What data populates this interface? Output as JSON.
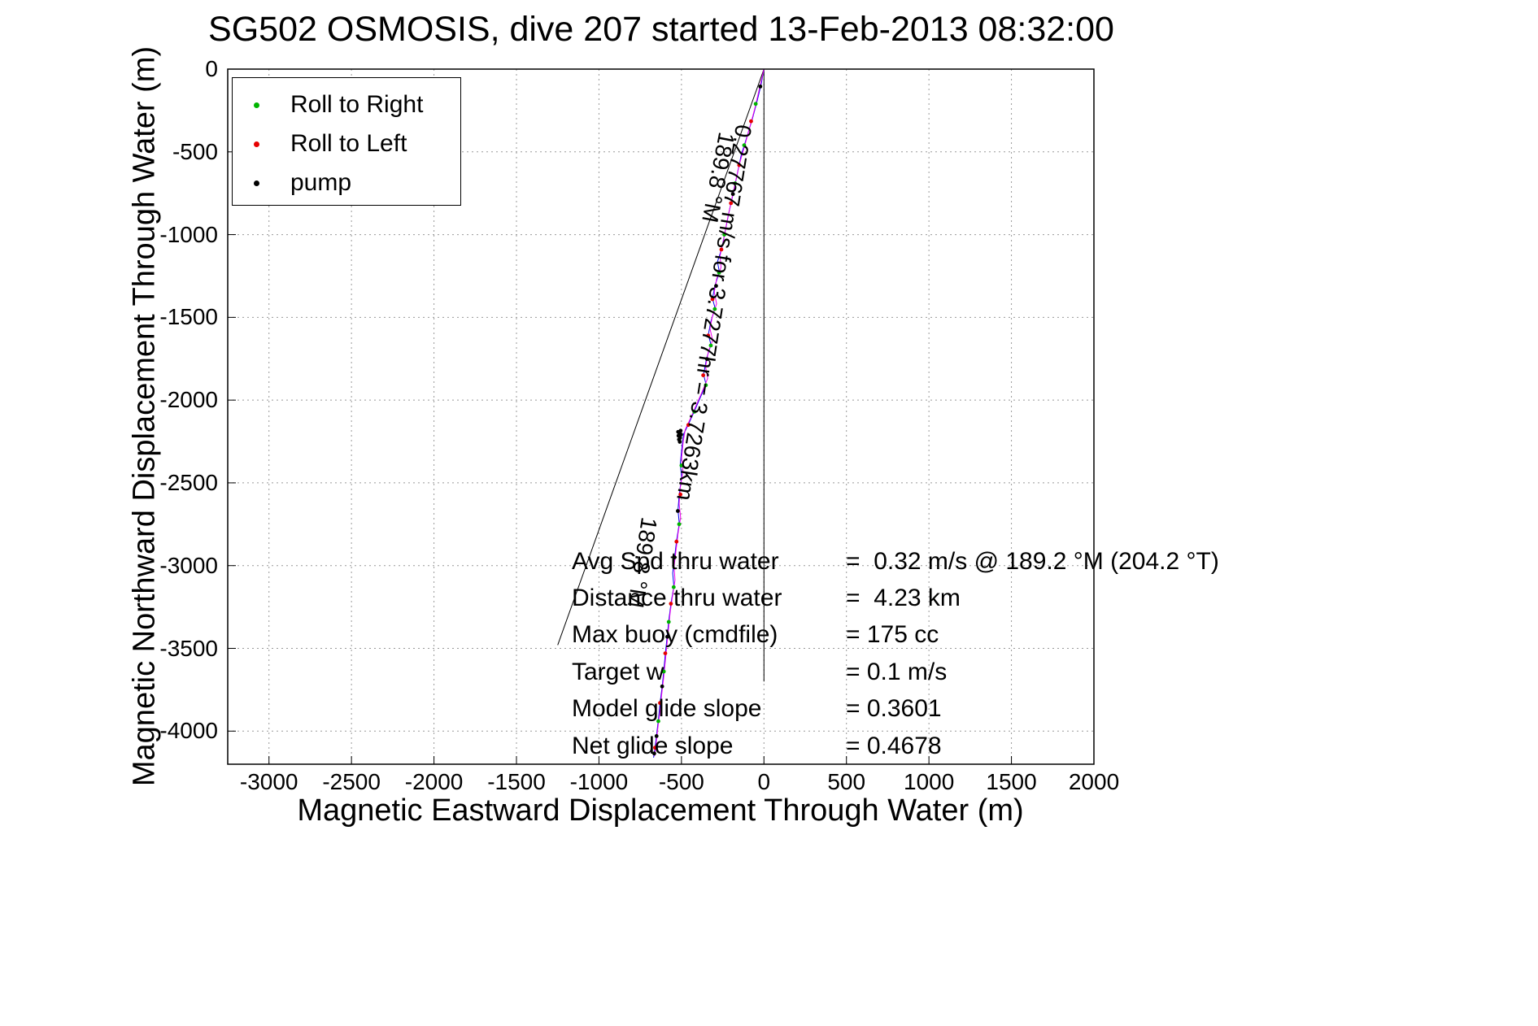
{
  "chart_data": {
    "type": "line",
    "title": "SG502 OSMOSIS, dive 207 started 13-Feb-2013 08:32:00",
    "xlabel": "Magnetic Eastward Displacement Through Water (m)",
    "ylabel": "Magnetic Northward Displacement Through Water (m)",
    "xlim": [
      -3250,
      2000
    ],
    "ylim": [
      -4200,
      0
    ],
    "xticks": [
      -3000,
      -2500,
      -2000,
      -1500,
      -1000,
      -500,
      0,
      500,
      1000,
      1500,
      2000
    ],
    "yticks": [
      0,
      -500,
      -1000,
      -1500,
      -2000,
      -2500,
      -3000,
      -3500,
      -4000
    ],
    "grid": true,
    "grid_color": "#999999",
    "legend": {
      "position": "top-left",
      "items": [
        {
          "id": "roll-to-right",
          "label": "Roll to Right",
          "color": "#00b400"
        },
        {
          "id": "roll-to-left",
          "label": "Roll to Left",
          "color": "#e60000"
        },
        {
          "id": "pump",
          "label": "pump",
          "color": "#000000"
        }
      ]
    },
    "reference_lines": [
      {
        "name": "magnetic-north-line",
        "from": [
          0,
          0
        ],
        "to": [
          0,
          -3700
        ],
        "color": "#000000"
      },
      {
        "name": "bearing-line",
        "from": [
          0,
          0
        ],
        "to": [
          -1250,
          -3480
        ],
        "color": "#000000"
      }
    ],
    "series": [
      {
        "name": "track-dive",
        "color": "#0000ee",
        "points": [
          [
            0,
            0
          ],
          [
            -18,
            -95
          ],
          [
            -42,
            -195
          ],
          [
            -70,
            -300
          ],
          [
            -105,
            -415
          ],
          [
            -138,
            -520
          ],
          [
            -160,
            -625
          ],
          [
            -185,
            -745
          ],
          [
            -212,
            -865
          ],
          [
            -236,
            -985
          ],
          [
            -256,
            -1085
          ],
          [
            -282,
            -1165
          ],
          [
            -270,
            -1225
          ],
          [
            -296,
            -1305
          ],
          [
            -312,
            -1385
          ],
          [
            -296,
            -1445
          ],
          [
            -322,
            -1525
          ],
          [
            -337,
            -1605
          ],
          [
            -321,
            -1665
          ],
          [
            -347,
            -1745
          ],
          [
            -366,
            -1845
          ],
          [
            -351,
            -1905
          ],
          [
            -386,
            -1985
          ],
          [
            -421,
            -2065
          ],
          [
            -457,
            -2145
          ],
          [
            -487,
            -2205
          ],
          [
            -497,
            -2285
          ],
          [
            -507,
            -2385
          ],
          [
            -499,
            -2465
          ],
          [
            -513,
            -2565
          ],
          [
            -521,
            -2665
          ],
          [
            -513,
            -2745
          ],
          [
            -529,
            -2845
          ],
          [
            -541,
            -2945
          ],
          [
            -553,
            -3045
          ],
          [
            -546,
            -3125
          ],
          [
            -563,
            -3225
          ],
          [
            -576,
            -3325
          ],
          [
            -586,
            -3425
          ],
          [
            -597,
            -3525
          ],
          [
            -606,
            -3625
          ],
          [
            -616,
            -3725
          ],
          [
            -629,
            -3825
          ],
          [
            -639,
            -3925
          ],
          [
            -651,
            -4025
          ],
          [
            -663,
            -4125
          ],
          [
            -669,
            -4160
          ]
        ]
      },
      {
        "name": "track-climb",
        "color": "#ee00ee",
        "points": [
          [
            0,
            0
          ],
          [
            -28,
            -120
          ],
          [
            -56,
            -240
          ],
          [
            -88,
            -360
          ],
          [
            -118,
            -468
          ],
          [
            -148,
            -572
          ],
          [
            -173,
            -682
          ],
          [
            -198,
            -800
          ],
          [
            -224,
            -920
          ],
          [
            -244,
            -1030
          ],
          [
            -266,
            -1128
          ],
          [
            -260,
            -1198
          ],
          [
            -287,
            -1268
          ],
          [
            -301,
            -1348
          ],
          [
            -287,
            -1418
          ],
          [
            -311,
            -1488
          ],
          [
            -327,
            -1568
          ],
          [
            -311,
            -1638
          ],
          [
            -337,
            -1708
          ],
          [
            -354,
            -1798
          ],
          [
            -341,
            -1868
          ],
          [
            -374,
            -1948
          ],
          [
            -409,
            -2028
          ],
          [
            -444,
            -2108
          ],
          [
            -477,
            -2178
          ],
          [
            -489,
            -2248
          ],
          [
            -499,
            -2348
          ],
          [
            -491,
            -2428
          ],
          [
            -507,
            -2528
          ],
          [
            -514,
            -2628
          ],
          [
            -505,
            -2708
          ],
          [
            -521,
            -2808
          ],
          [
            -533,
            -2908
          ],
          [
            -545,
            -3008
          ],
          [
            -539,
            -3088
          ],
          [
            -555,
            -3188
          ],
          [
            -569,
            -3288
          ],
          [
            -579,
            -3388
          ],
          [
            -589,
            -3488
          ],
          [
            -599,
            -3588
          ],
          [
            -609,
            -3688
          ],
          [
            -621,
            -3788
          ],
          [
            -631,
            -3888
          ],
          [
            -644,
            -3988
          ],
          [
            -655,
            -4088
          ],
          [
            -663,
            -4150
          ]
        ]
      }
    ],
    "markers": [
      {
        "name": "roll-right",
        "color": "#00b400",
        "points": [
          [
            -50,
            -210
          ],
          [
            -120,
            -460
          ],
          [
            -175,
            -690
          ],
          [
            -240,
            -1000
          ],
          [
            -272,
            -1230
          ],
          [
            -298,
            -1450
          ],
          [
            -322,
            -1670
          ],
          [
            -352,
            -1910
          ],
          [
            -422,
            -2070
          ],
          [
            -500,
            -2395
          ],
          [
            -514,
            -2750
          ],
          [
            -547,
            -3130
          ],
          [
            -577,
            -3340
          ],
          [
            -607,
            -3640
          ],
          [
            -640,
            -3940
          ]
        ]
      },
      {
        "name": "roll-left",
        "color": "#e60000",
        "points": [
          [
            -78,
            -315
          ],
          [
            -150,
            -580
          ],
          [
            -200,
            -810
          ],
          [
            -258,
            -1090
          ],
          [
            -312,
            -1390
          ],
          [
            -338,
            -1610
          ],
          [
            -368,
            -1850
          ],
          [
            -458,
            -2150
          ],
          [
            -506,
            -2570
          ],
          [
            -530,
            -2855
          ],
          [
            -564,
            -3230
          ],
          [
            -598,
            -3530
          ],
          [
            -630,
            -3830
          ],
          [
            -660,
            -4100
          ]
        ]
      },
      {
        "name": "pump",
        "color": "#000000",
        "points": [
          [
            -22,
            -105
          ],
          [
            -188,
            -755
          ],
          [
            -290,
            -1310
          ],
          [
            -345,
            -1752
          ],
          [
            -505,
            -2185
          ],
          [
            -512,
            -2200
          ],
          [
            -518,
            -2215
          ],
          [
            -508,
            -2228
          ],
          [
            -515,
            -2238
          ],
          [
            -502,
            -2208
          ],
          [
            -520,
            -2192
          ],
          [
            -510,
            -2252
          ],
          [
            -522,
            -2670
          ],
          [
            -542,
            -2950
          ],
          [
            -586,
            -3430
          ],
          [
            -617,
            -3730
          ],
          [
            -651,
            -4030
          ],
          [
            -665,
            -4135
          ]
        ]
      }
    ],
    "annotations": [
      {
        "text": "189.8 °M",
        "x": -150,
        "y": -400,
        "rotation": 101
      },
      {
        "text": "0.27767 m/s for 3.7277hr = 3.7263km",
        "x": -45,
        "y": -350,
        "rotation": 99
      },
      {
        "text": "189.8 °M",
        "x": -620,
        "y": -2720,
        "rotation": 99
      }
    ],
    "stats": [
      {
        "label": "Avg Spd thru water",
        "value": "=  0.32 m/s @ 189.2 °M (204.2 °T)"
      },
      {
        "label": "Distance thru water",
        "value": "=  4.23 km"
      },
      {
        "label": "Max buoy (cmdfile)",
        "value": "= 175 cc"
      },
      {
        "label": "Target w",
        "value": "= 0.1 m/s"
      },
      {
        "label": "Model glide slope",
        "value": "= 0.3601"
      },
      {
        "label": "Net glide slope",
        "value": "= 0.4678"
      }
    ]
  }
}
